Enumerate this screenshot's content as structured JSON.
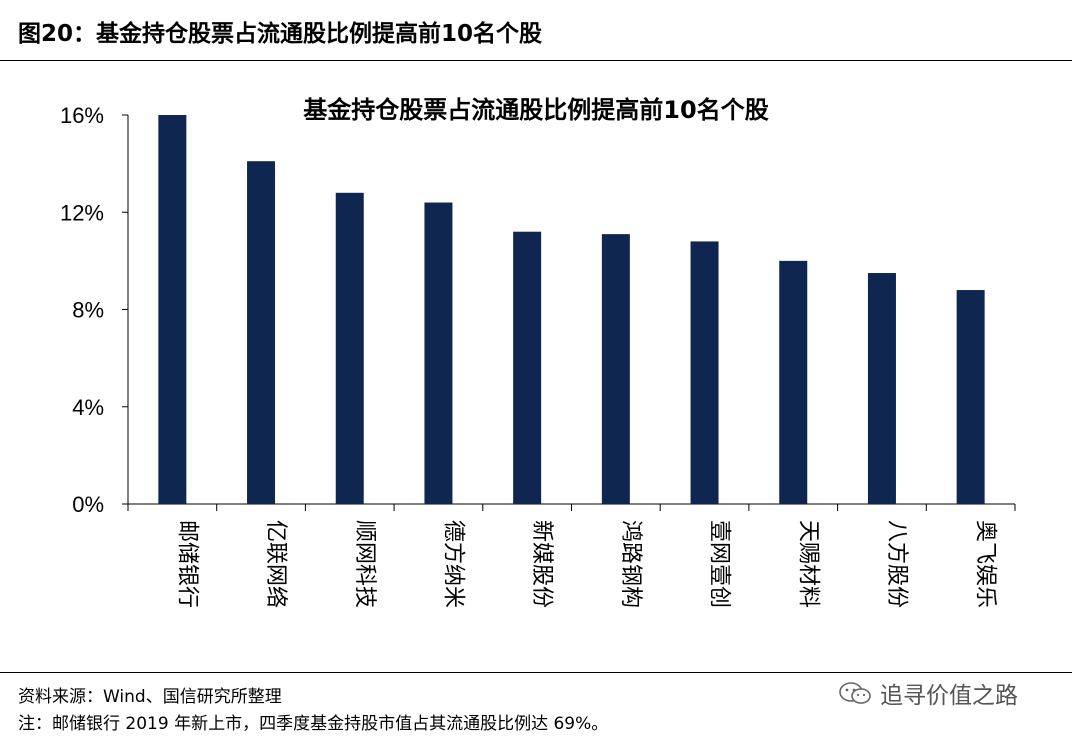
{
  "figure_label": "图20：基金持仓股票占流通股比例提高前10名个股",
  "chart_data": {
    "type": "bar",
    "title": "基金持仓股票占流通股比例提高前10名个股",
    "categories": [
      "邮储银行",
      "亿联网络",
      "顺网科技",
      "德方纳米",
      "新媒股份",
      "鸿路钢构",
      "壹网壹创",
      "天赐材料",
      "八方股份",
      "奥飞娱乐"
    ],
    "values": [
      16.0,
      14.1,
      12.8,
      12.4,
      11.2,
      11.1,
      10.8,
      10.0,
      9.5,
      8.8
    ],
    "value_unit": "%",
    "ylim": [
      0,
      16
    ],
    "yticks": [
      0,
      4,
      8,
      12,
      16
    ],
    "ytick_labels": [
      "0%",
      "4%",
      "8%",
      "12%",
      "16%"
    ],
    "bar_color": "#0f2650",
    "grid": false,
    "xlabel": "",
    "ylabel": ""
  },
  "footer": {
    "source": "资料来源：Wind、国信研究所整理",
    "note": "注：邮储银行 2019 年新上市，四季度基金持股市值占其流通股比例达 69%。"
  },
  "watermark": {
    "text": "追寻价值之路",
    "icon": "wechat-icon"
  }
}
